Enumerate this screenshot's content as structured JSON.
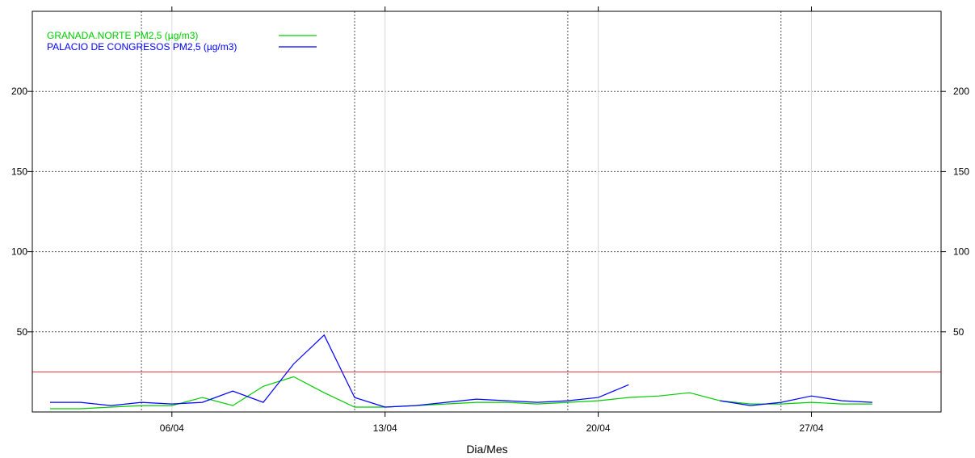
{
  "chart_data": {
    "type": "line",
    "xlabel": "Dia/Mes",
    "ylabel": "",
    "x": [
      "02/04",
      "03/04",
      "04/04",
      "05/04",
      "06/04",
      "07/04",
      "08/04",
      "09/04",
      "10/04",
      "11/04",
      "12/04",
      "13/04",
      "14/04",
      "15/04",
      "16/04",
      "17/04",
      "18/04",
      "19/04",
      "20/04",
      "21/04",
      "22/04",
      "23/04",
      "24/04",
      "25/04",
      "26/04",
      "27/04",
      "28/04",
      "29/04"
    ],
    "x_tick_labels": [
      "06/04",
      "13/04",
      "20/04",
      "27/04"
    ],
    "ylim": [
      0,
      250
    ],
    "y_ticks": [
      50,
      100,
      150,
      200
    ],
    "grid": true,
    "legend_position": "top-left",
    "series": [
      {
        "name": "GRANADA.NORTE PM2,5 (µg/m3)",
        "color": "#00cc00",
        "values": [
          2,
          2,
          3,
          4,
          4,
          9,
          4,
          16,
          22,
          12,
          3,
          3,
          4,
          5,
          6,
          6,
          5,
          6,
          7,
          9,
          10,
          12,
          7,
          5,
          5,
          6,
          5,
          5
        ]
      },
      {
        "name": "PALACIO DE CONGRESOS PM2,5 (µg/m3)",
        "color": "#0000ff",
        "values": [
          6,
          6,
          4,
          6,
          5,
          6,
          13,
          6,
          30,
          48,
          9,
          3,
          4,
          6,
          8,
          7,
          6,
          7,
          9,
          17,
          null,
          null,
          7,
          4,
          6,
          10,
          7,
          6
        ]
      }
    ],
    "reference_line": {
      "value": 25,
      "color": "#e03040"
    }
  }
}
